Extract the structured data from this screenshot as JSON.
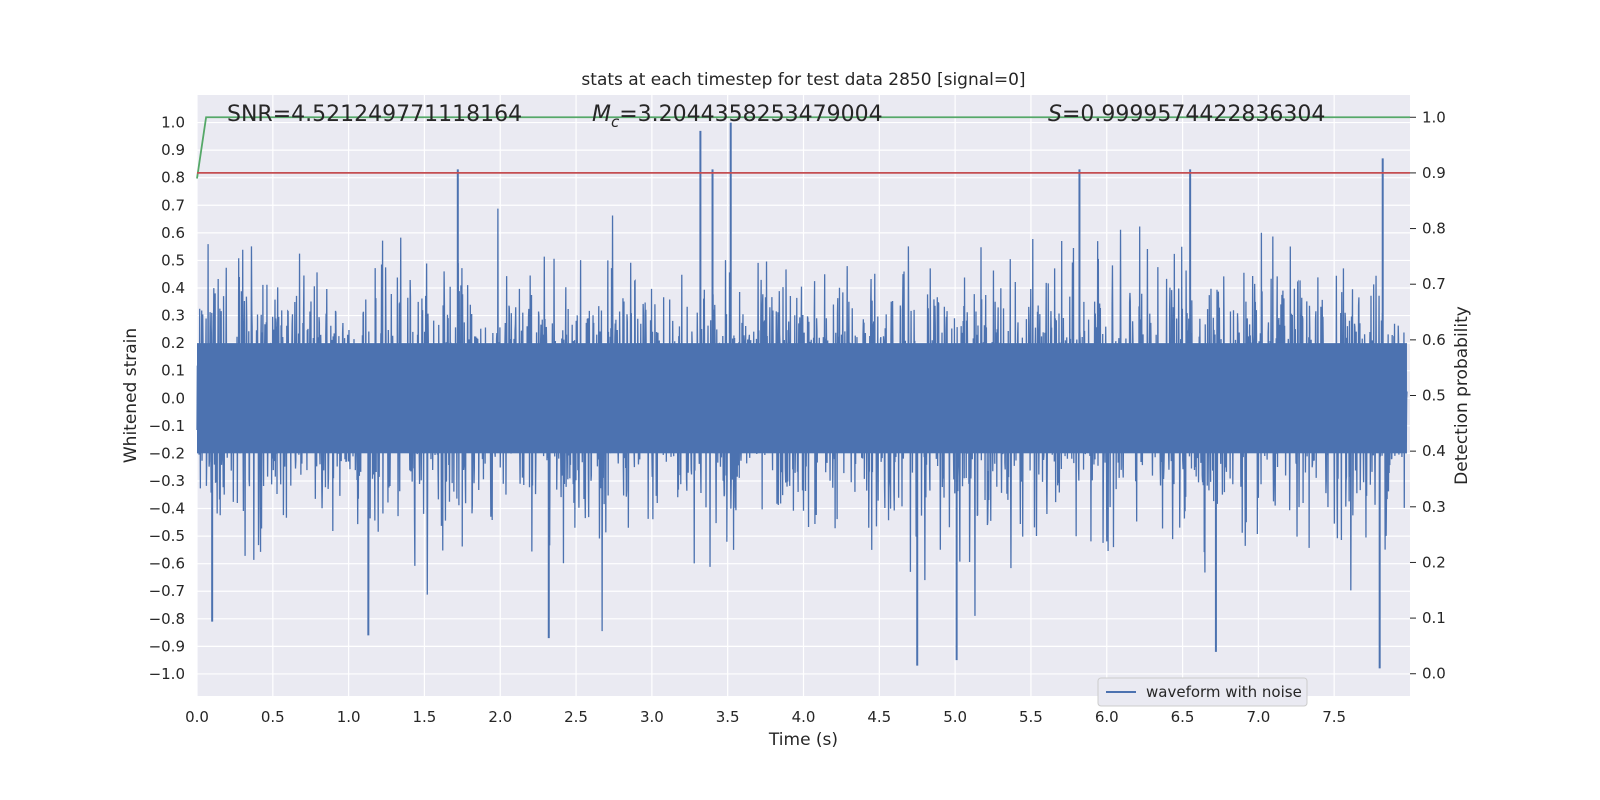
{
  "chart_data": {
    "type": "line",
    "title": "stats at each timestep for test data 2850 [signal=0]",
    "xlabel": "Time (s)",
    "ylabel": "Whitened strain",
    "y2label": "Detection probability",
    "xlim": [
      0.0,
      8.0
    ],
    "ylim": [
      -1.08,
      1.1
    ],
    "y2lim": [
      -0.04,
      1.04
    ],
    "xticks": [
      "0.0",
      "0.5",
      "1.0",
      "1.5",
      "2.0",
      "2.5",
      "3.0",
      "3.5",
      "4.0",
      "4.5",
      "5.0",
      "5.5",
      "6.0",
      "6.5",
      "7.0",
      "7.5"
    ],
    "yticks": [
      "1.0",
      "0.9",
      "0.8",
      "0.7",
      "0.6",
      "0.5",
      "0.4",
      "0.3",
      "0.2",
      "0.1",
      "0.0",
      "−0.1",
      "−0.2",
      "−0.3",
      "−0.4",
      "−0.5",
      "−0.6",
      "−0.7",
      "−0.8",
      "−0.9",
      "−1.0"
    ],
    "y2ticks": [
      "1.0",
      "0.9",
      "0.8",
      "0.7",
      "0.6",
      "0.5",
      "0.4",
      "0.3",
      "0.2",
      "0.1",
      "0.0"
    ],
    "annotations": {
      "snr": "SNR=4.521249771118164",
      "mc_symbol": "M",
      "mc_subscript": "c",
      "mc_value": "=3.2044358253479004",
      "s_symbol": "S",
      "s_value": "=0.9999574422836304"
    },
    "series": [
      {
        "name": "waveform with noise",
        "axis": "left",
        "color": "#4c72b0",
        "description": "dense noisy whitened strain, amplitude mostly within ±0.6, peaks up to ~0.97"
      },
      {
        "name": "detection probability",
        "axis": "right",
        "color": "#55a868",
        "x": [
          0.0,
          0.06,
          8.0
        ],
        "values": [
          0.89,
          1.0,
          1.0
        ]
      },
      {
        "name": "threshold",
        "axis": "right",
        "color": "#c44e52",
        "x": [
          0.0,
          8.0
        ],
        "values": [
          0.9,
          0.9
        ]
      }
    ],
    "legend": {
      "entries": [
        "waveform with noise"
      ],
      "position": "lower-right"
    },
    "colors": {
      "background": "#eaeaf2",
      "grid": "#ffffff",
      "text": "#262626"
    }
  }
}
